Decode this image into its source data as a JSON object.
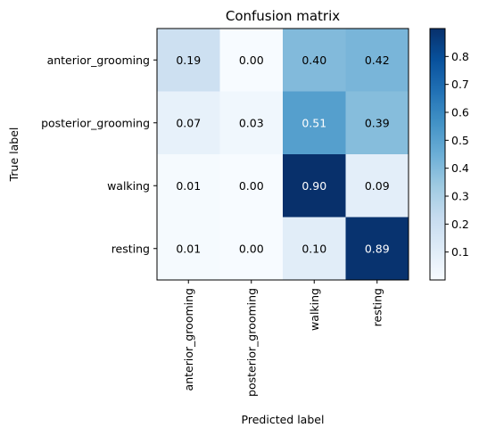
{
  "chart_data": {
    "type": "heatmap",
    "title": "Confusion matrix",
    "xlabel": "Predicted label",
    "ylabel": "True label",
    "x_categories": [
      "anterior_grooming",
      "posterior_grooming",
      "walking",
      "resting"
    ],
    "y_categories": [
      "anterior_grooming",
      "posterior_grooming",
      "walking",
      "resting"
    ],
    "values": [
      [
        0.19,
        0.0,
        0.4,
        0.42
      ],
      [
        0.07,
        0.03,
        0.51,
        0.39
      ],
      [
        0.01,
        0.0,
        0.9,
        0.09
      ],
      [
        0.01,
        0.0,
        0.1,
        0.89
      ]
    ],
    "value_range": [
      0.0,
      0.9
    ],
    "colormap": "Blues",
    "colorbar_ticks": [
      0.1,
      0.2,
      0.3,
      0.4,
      0.5,
      0.6,
      0.7,
      0.8
    ],
    "colors": {
      "low": "#f7fbff",
      "high": "#08306b"
    }
  }
}
